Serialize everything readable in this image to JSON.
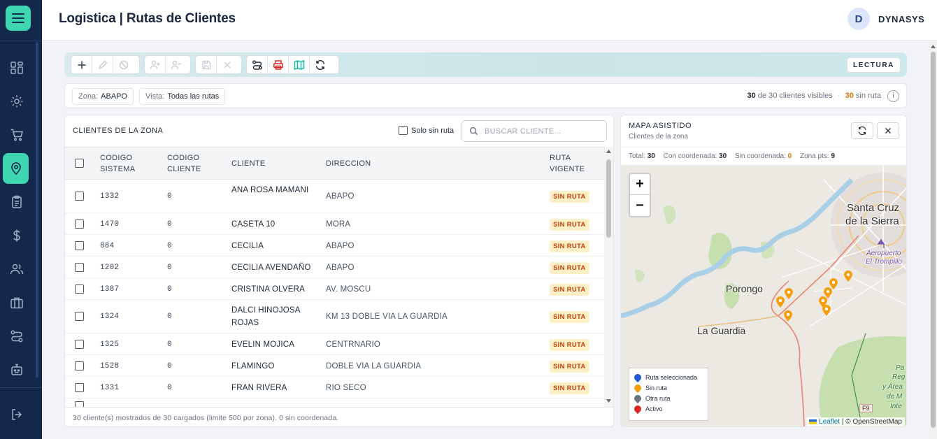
{
  "header": {
    "title": "Logistica | Rutas de Clientes",
    "avatar_initial": "D",
    "user": "DYNASYS"
  },
  "sidebar": {
    "items": [
      {
        "icon": "dashboard-icon"
      },
      {
        "icon": "gear-icon"
      },
      {
        "icon": "cart-icon"
      },
      {
        "icon": "map-pin-icon",
        "active": true
      },
      {
        "icon": "clipboard-icon"
      },
      {
        "icon": "dollar-icon"
      },
      {
        "icon": "users-icon"
      },
      {
        "icon": "briefcase-icon"
      },
      {
        "icon": "route-icon"
      },
      {
        "icon": "robot-icon"
      }
    ],
    "logout_icon": "logout-icon",
    "accent": "#3ed6b0",
    "bg": "#13294b"
  },
  "toolbar": {
    "mode": "LECTURA"
  },
  "filters": {
    "zona_label": "Zona:",
    "zona_value": "ABAPO",
    "vista_label": "Vista:",
    "vista_value": "Todas las rutas",
    "visible_count": "30",
    "visible_text": "de 30 clientes visibles",
    "sep": "·",
    "sin_ruta_count": "30",
    "sin_ruta_text": "sin ruta",
    "info": "i"
  },
  "clients": {
    "title": "CLIENTES DE LA ZONA",
    "only_no_route": "Solo sin ruta",
    "search_placeholder": "BUSCAR CLIENTE...",
    "columns": {
      "codigo_sistema_1": "CODIGO",
      "codigo_sistema_2": "SISTEMA",
      "codigo_cliente_1": "CODIGO",
      "codigo_cliente_2": "CLIENTE",
      "cliente": "CLIENTE",
      "direccion": "DIRECCION",
      "ruta_1": "RUTA",
      "ruta_2": "VIGENTE"
    },
    "rows": [
      {
        "sistema": "1332",
        "codigo": "0",
        "cliente": "ANA ROSA MAMANI",
        "direccion": "ABAPO",
        "ruta": "SIN RUTA",
        "tall": true
      },
      {
        "sistema": "1470",
        "codigo": "0",
        "cliente": "CASETA 10",
        "direccion": "MORA",
        "ruta": "SIN RUTA"
      },
      {
        "sistema": "884",
        "codigo": "0",
        "cliente": "CECILIA",
        "direccion": "ABAPO",
        "ruta": "SIN RUTA"
      },
      {
        "sistema": "1202",
        "codigo": "0",
        "cliente": "CECILIA AVENDAÑO",
        "direccion": "ABAPO",
        "ruta": "SIN RUTA"
      },
      {
        "sistema": "1387",
        "codigo": "0",
        "cliente": "CRISTINA OLVERA",
        "direccion": "AV. MOSCU",
        "ruta": "SIN RUTA"
      },
      {
        "sistema": "1324",
        "codigo": "0",
        "cliente": "DALCI HINOJOSA ROJAS",
        "direccion": "KM 13 DOBLE VIA LA GUARDIA",
        "ruta": "SIN RUTA",
        "tall": true
      },
      {
        "sistema": "1325",
        "codigo": "0",
        "cliente": "EVELIN MOJICA",
        "direccion": "CENTRNARIO",
        "ruta": "SIN RUTA"
      },
      {
        "sistema": "1528",
        "codigo": "0",
        "cliente": "FLAMINGO",
        "direccion": "DOBLE VIA LA GUARDIA",
        "ruta": "SIN RUTA"
      },
      {
        "sistema": "1331",
        "codigo": "0",
        "cliente": "FRAN RIVERA",
        "direccion": "RIO SECO",
        "ruta": "SIN RUTA"
      }
    ],
    "footer": "30 cliente(s) mostrados de 30 cargados (limite 500 por zona). 0 sin coordenada."
  },
  "map": {
    "title": "MAPA ASISTIDO",
    "subtitle": "Clientes de la zona",
    "stats": {
      "total_label": "Total:",
      "total": "30",
      "con_label": "Con coordenada:",
      "con": "30",
      "sin_label": "Sin coordenada:",
      "sin": "0",
      "zona_label": "Zona pts:",
      "zona": "9"
    },
    "zoom_in": "+",
    "zoom_out": "−",
    "labels": {
      "santa_cruz_1": "Santa Cruz",
      "santa_cruz_2": "de la Sierra",
      "aeropuerto_1": "Aeropuerto",
      "aeropuerto_2": "El Trompillo",
      "porongo": "Porongo",
      "la_guardia": "La Guardia",
      "park_1": "Pa",
      "park_2": "Reg",
      "park_3": "y Área",
      "park_4": "de M",
      "park_5": "Inte",
      "road": "F9"
    },
    "legend": [
      {
        "label": "Ruta seleccionada",
        "color": "#1d5bd8"
      },
      {
        "label": "Sin ruta",
        "color": "#f59e0b"
      },
      {
        "label": "Otra ruta",
        "color": "#6b7280"
      },
      {
        "label": "Activo",
        "color": "#dc2626"
      }
    ],
    "attribution_leaflet": "Leaflet",
    "attribution_rest": " | © OpenStreetMap"
  }
}
